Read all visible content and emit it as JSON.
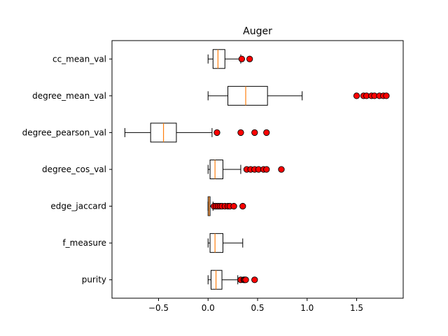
{
  "chart_data": {
    "type": "boxplot",
    "orientation": "horizontal",
    "title": "Auger",
    "xlabel": "",
    "ylabel": "",
    "xlim": [
      -0.97,
      1.97
    ],
    "xticks": [
      -0.5,
      0.0,
      0.5,
      1.0,
      1.5
    ],
    "xtick_labels": [
      "−0.5",
      "0.0",
      "0.5",
      "1.0",
      "1.5"
    ],
    "grid": false,
    "median_color": "#ff7f0e",
    "flier_color": "#ff0000",
    "series": [
      {
        "name": "purity",
        "whisker_low": 0.0,
        "q1": 0.03,
        "median": 0.08,
        "q3": 0.14,
        "whisker_high": 0.3,
        "outliers": [
          0.33,
          0.36,
          0.37,
          0.38,
          0.47
        ]
      },
      {
        "name": "f_measure",
        "whisker_low": 0.0,
        "q1": 0.02,
        "median": 0.07,
        "q3": 0.15,
        "whisker_high": 0.35,
        "outliers": []
      },
      {
        "name": "edge_jaccard",
        "whisker_low": 0.0,
        "q1": 0.0,
        "median": 0.01,
        "q3": 0.02,
        "whisker_high": 0.05,
        "outliers": [
          0.06,
          0.08,
          0.1,
          0.12,
          0.14,
          0.17,
          0.2,
          0.22,
          0.26,
          0.35
        ]
      },
      {
        "name": "degree_cos_val",
        "whisker_low": 0.0,
        "q1": 0.02,
        "median": 0.07,
        "q3": 0.15,
        "whisker_high": 0.33,
        "outliers": [
          0.39,
          0.43,
          0.47,
          0.51,
          0.56,
          0.59,
          0.74
        ]
      },
      {
        "name": "degree_pearson_val",
        "whisker_low": -0.84,
        "q1": -0.58,
        "median": -0.45,
        "q3": -0.32,
        "whisker_high": 0.04,
        "outliers": [
          0.09,
          0.33,
          0.47,
          0.59
        ]
      },
      {
        "name": "degree_mean_val",
        "whisker_low": 0.0,
        "q1": 0.2,
        "median": 0.38,
        "q3": 0.6,
        "whisker_high": 0.95,
        "outliers": [
          1.5,
          1.57,
          1.6,
          1.65,
          1.68,
          1.73,
          1.77,
          1.8
        ]
      },
      {
        "name": "cc_mean_val",
        "whisker_low": 0.0,
        "q1": 0.05,
        "median": 0.1,
        "q3": 0.17,
        "whisker_high": 0.33,
        "outliers": [
          0.34,
          0.42
        ]
      }
    ]
  }
}
